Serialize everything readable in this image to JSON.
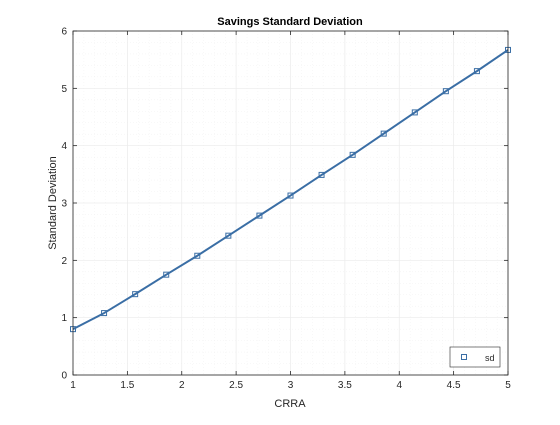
{
  "chart_data": {
    "type": "line",
    "title": "Savings Standard Deviation",
    "xlabel": "CRRA",
    "ylabel": "Standard Deviation",
    "xlim": [
      1,
      5
    ],
    "ylim": [
      0,
      6
    ],
    "xticks": [
      1,
      1.5,
      2,
      2.5,
      3,
      3.5,
      4,
      4.5,
      5
    ],
    "xtick_labels": [
      "1",
      "1.5",
      "2",
      "2.5",
      "3",
      "3.5",
      "4",
      "4.5",
      "5"
    ],
    "yticks": [
      0,
      1,
      2,
      3,
      4,
      5,
      6
    ],
    "ytick_labels": [
      "0",
      "1",
      "2",
      "3",
      "4",
      "5",
      "6"
    ],
    "grid": true,
    "minor_grid": true,
    "legend_position": "bottom-right",
    "colors": {
      "line": "#3a6ea5",
      "axis": "#262626",
      "grid": "#ebebeb"
    },
    "x": [
      1,
      1.2857,
      1.5714,
      1.8571,
      2.1429,
      2.4286,
      2.7143,
      3,
      3.2857,
      3.5714,
      3.8571,
      4.1429,
      4.4286,
      4.7143,
      5
    ],
    "series": [
      {
        "name": "sd",
        "marker": "square",
        "values": [
          0.8,
          1.08,
          1.41,
          1.75,
          2.08,
          2.43,
          2.78,
          3.13,
          3.49,
          3.84,
          4.21,
          4.58,
          4.95,
          5.3,
          5.67
        ]
      }
    ]
  }
}
